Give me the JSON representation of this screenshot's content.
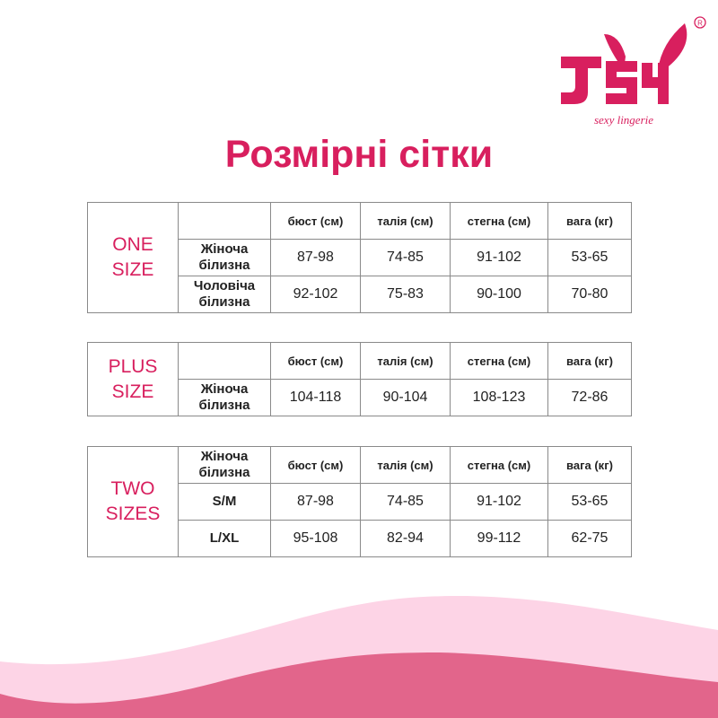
{
  "logo": {
    "text": "JSY",
    "tagline": "sexy lingerie",
    "registered": "®"
  },
  "title": "Розмірні сітки",
  "headers": [
    "бюст (см)",
    "талія (см)",
    "стегна (см)",
    "вага (кг)"
  ],
  "tables": [
    {
      "label": "ONE SIZE",
      "corner": "",
      "rows": [
        {
          "name": "Жіноча білизна",
          "values": [
            "87-98",
            "74-85",
            "91-102",
            "53-65"
          ]
        },
        {
          "name": "Чоловіча білизна",
          "values": [
            "92-102",
            "75-83",
            "90-100",
            "70-80"
          ]
        }
      ]
    },
    {
      "label": "PLUS SIZE",
      "corner": "",
      "rows": [
        {
          "name": "Жіноча білизна",
          "values": [
            "104-118",
            "90-104",
            "108-123",
            "72-86"
          ]
        }
      ]
    },
    {
      "label": "TWO SIZES",
      "corner": "Жіноча білизна",
      "rows": [
        {
          "name": "S/M",
          "values": [
            "87-98",
            "74-85",
            "91-102",
            "53-65"
          ]
        },
        {
          "name": "L/XL",
          "values": [
            "95-108",
            "82-94",
            "99-112",
            "62-75"
          ]
        }
      ]
    }
  ],
  "colors": {
    "accent": "#d81f5e",
    "wave_light": "#fdd4e6",
    "wave_dark": "#e2658b"
  }
}
